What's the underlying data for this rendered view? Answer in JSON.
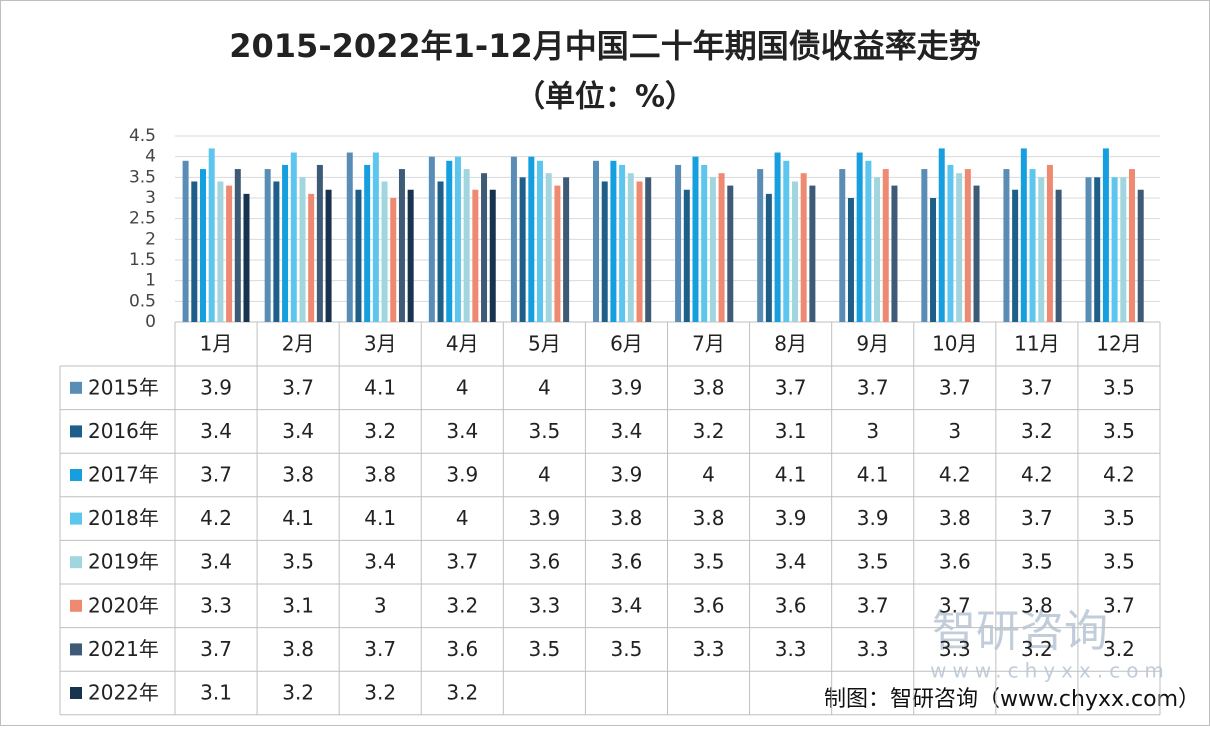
{
  "chart_data": {
    "type": "bar",
    "title": "2015-2022年1-12月中国二十年期国债收益率走势",
    "subtitle": "（单位：%）",
    "categories": [
      "1月",
      "2月",
      "3月",
      "4月",
      "5月",
      "6月",
      "7月",
      "8月",
      "9月",
      "10月",
      "11月",
      "12月"
    ],
    "series": [
      {
        "name": "2015年",
        "color": "#5a8db5",
        "values": [
          3.9,
          3.7,
          4.1,
          4,
          4,
          3.9,
          3.8,
          3.7,
          3.7,
          3.7,
          3.7,
          3.5
        ]
      },
      {
        "name": "2016年",
        "color": "#1e5f8a",
        "values": [
          3.4,
          3.4,
          3.2,
          3.4,
          3.5,
          3.4,
          3.2,
          3.1,
          3,
          3,
          3.2,
          3.5
        ]
      },
      {
        "name": "2017年",
        "color": "#169fdf",
        "values": [
          3.7,
          3.8,
          3.8,
          3.9,
          4,
          3.9,
          4,
          4.1,
          4.1,
          4.2,
          4.2,
          4.2
        ]
      },
      {
        "name": "2018年",
        "color": "#5cc6ef",
        "values": [
          4.2,
          4.1,
          4.1,
          4,
          3.9,
          3.8,
          3.8,
          3.9,
          3.9,
          3.8,
          3.7,
          3.5
        ]
      },
      {
        "name": "2019年",
        "color": "#a2d6df",
        "values": [
          3.4,
          3.5,
          3.4,
          3.7,
          3.6,
          3.6,
          3.5,
          3.4,
          3.5,
          3.6,
          3.5,
          3.5
        ]
      },
      {
        "name": "2020年",
        "color": "#ef8a72",
        "values": [
          3.3,
          3.1,
          3,
          3.2,
          3.3,
          3.4,
          3.6,
          3.6,
          3.7,
          3.7,
          3.8,
          3.7
        ]
      },
      {
        "name": "2021年",
        "color": "#3d5a77",
        "values": [
          3.7,
          3.8,
          3.7,
          3.6,
          3.5,
          3.5,
          3.3,
          3.3,
          3.3,
          3.3,
          3.2,
          3.2
        ]
      },
      {
        "name": "2022年",
        "color": "#17334f",
        "values": [
          3.1,
          3.2,
          3.2,
          3.2,
          null,
          null,
          null,
          null,
          null,
          null,
          null,
          null
        ]
      }
    ],
    "ylim": [
      0,
      4.5
    ],
    "yticks": [
      0,
      0.5,
      1,
      1.5,
      2,
      2.5,
      3,
      3.5,
      4,
      4.5
    ],
    "grid": true,
    "watermark": "智研咨询",
    "watermark_url": "www.chyxx.com",
    "source": "制图：智研咨询（www.chyxx.com）"
  }
}
